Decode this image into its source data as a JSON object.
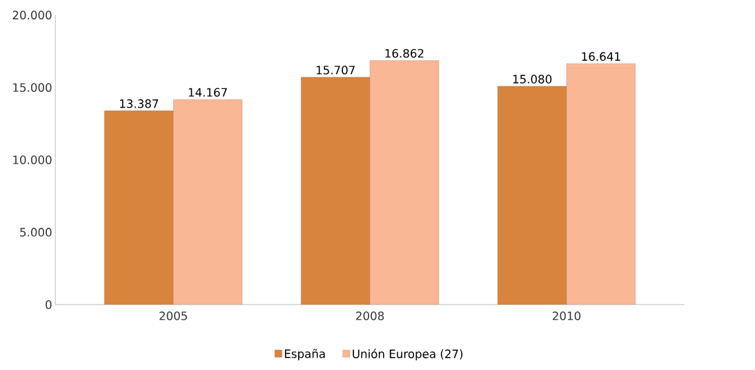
{
  "chart_data": {
    "type": "bar",
    "categories": [
      "2005",
      "2008",
      "2010"
    ],
    "series": [
      {
        "name": "España",
        "color": "#d9843c",
        "values": [
          13387,
          15707,
          15080
        ],
        "value_labels": [
          "13.387",
          "15.707",
          "15.080"
        ]
      },
      {
        "name": "Unión Europea (27)",
        "color": "#f9b795",
        "values": [
          14167,
          16862,
          16641
        ],
        "value_labels": [
          "14.167",
          "16.862",
          "16.641"
        ]
      }
    ],
    "ylim": [
      0,
      20000
    ],
    "yticks": [
      0,
      {
        "value": 5000,
        "label": "5.000"
      },
      {
        "value": 10000,
        "label": "10.000"
      },
      {
        "value": 15000,
        "label": "15.000"
      },
      {
        "value": 20000,
        "label": "20.000"
      }
    ],
    "legend": "bottom"
  }
}
